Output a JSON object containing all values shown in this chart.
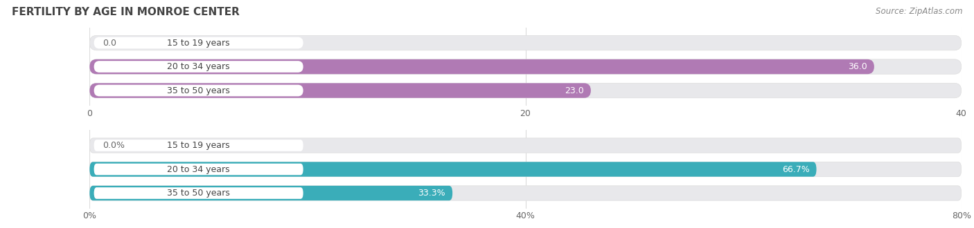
{
  "title": "Fertility by Age in Monroe Center",
  "source": "Source: ZipAtlas.com",
  "top_chart": {
    "categories": [
      "15 to 19 years",
      "20 to 34 years",
      "35 to 50 years"
    ],
    "values": [
      0.0,
      36.0,
      23.0
    ],
    "bar_color": "#b07ab4",
    "bar_color_light": "#c9a0cc",
    "xlim": [
      0,
      40
    ],
    "xticks": [
      0.0,
      20.0,
      40.0
    ],
    "xlabel_suffix": ""
  },
  "bottom_chart": {
    "categories": [
      "15 to 19 years",
      "20 to 34 years",
      "35 to 50 years"
    ],
    "values": [
      0.0,
      66.7,
      33.3
    ],
    "bar_color": "#3aadb9",
    "bar_color_light": "#7fcdd6",
    "xlim": [
      0,
      80
    ],
    "xticks": [
      0.0,
      40.0,
      80.0
    ],
    "xlabel_suffix": "%"
  },
  "label_fontsize": 9,
  "tick_fontsize": 9,
  "title_fontsize": 11,
  "source_fontsize": 8.5,
  "bar_height": 0.62,
  "background_color": "#ffffff",
  "bar_bg_color": "#e8e8eb",
  "grid_color": "#cccccc",
  "label_bg_color": "#ffffff",
  "label_text_color": "#444444",
  "value_color_inside": "#ffffff",
  "value_color_outside": "#666666"
}
